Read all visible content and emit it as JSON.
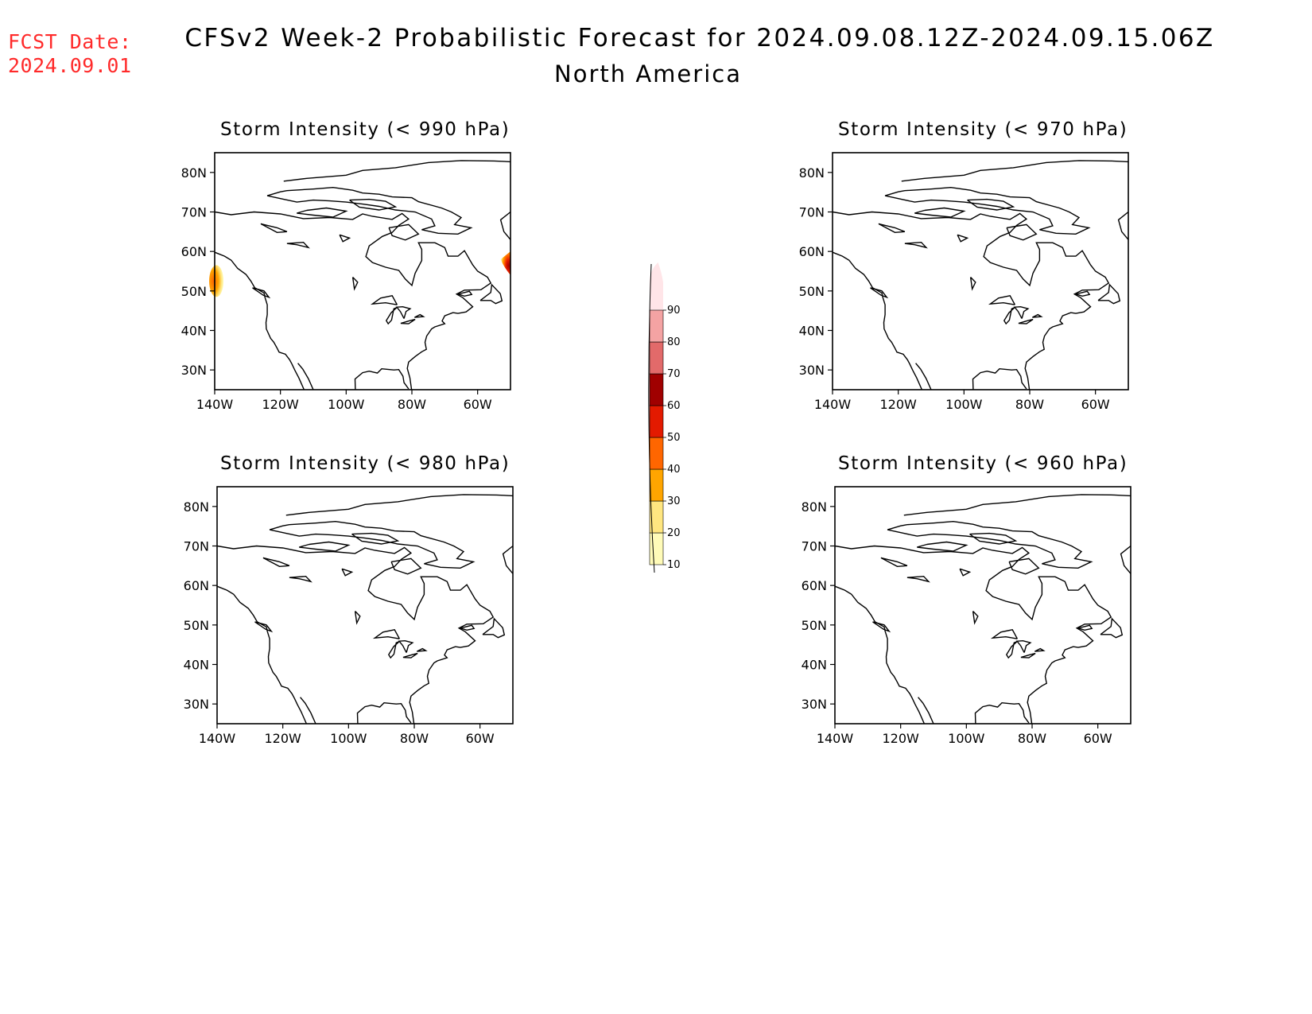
{
  "header": {
    "fcst_label": "FCST Date:",
    "fcst_date": "2024.09.01",
    "title": "CFSv2 Week-2 Probabilistic Forecast for 2024.09.08.12Z-2024.09.15.06Z",
    "region": "North America"
  },
  "panels": [
    {
      "title": "Storm Intensity (< 990 hPa)",
      "has_shading": true
    },
    {
      "title": "Storm Intensity (< 970 hPa)",
      "has_shading": false
    },
    {
      "title": "Storm Intensity (< 980 hPa)",
      "has_shading": false
    },
    {
      "title": "Storm Intensity (< 960 hPa)",
      "has_shading": false
    }
  ],
  "axes": {
    "lat_labels": [
      "80N",
      "70N",
      "60N",
      "50N",
      "40N",
      "30N"
    ],
    "lat_values": [
      80,
      70,
      60,
      50,
      40,
      30
    ],
    "lon_labels": [
      "140W",
      "120W",
      "100W",
      "80W",
      "60W"
    ],
    "lon_values": [
      -140,
      -120,
      -100,
      -80,
      -60
    ],
    "lat_range": [
      25,
      85
    ],
    "lon_range": [
      -140,
      -50
    ]
  },
  "colorbar": {
    "levels": [
      "10",
      "20",
      "30",
      "40",
      "50",
      "60",
      "70",
      "80",
      "90"
    ],
    "colors": [
      "#fffbb8",
      "#ffe680",
      "#ffa500",
      "#ff6600",
      "#e31a00",
      "#a00000",
      "#e26a6a",
      "#f4a3a3",
      "#ffe5e8"
    ]
  }
}
